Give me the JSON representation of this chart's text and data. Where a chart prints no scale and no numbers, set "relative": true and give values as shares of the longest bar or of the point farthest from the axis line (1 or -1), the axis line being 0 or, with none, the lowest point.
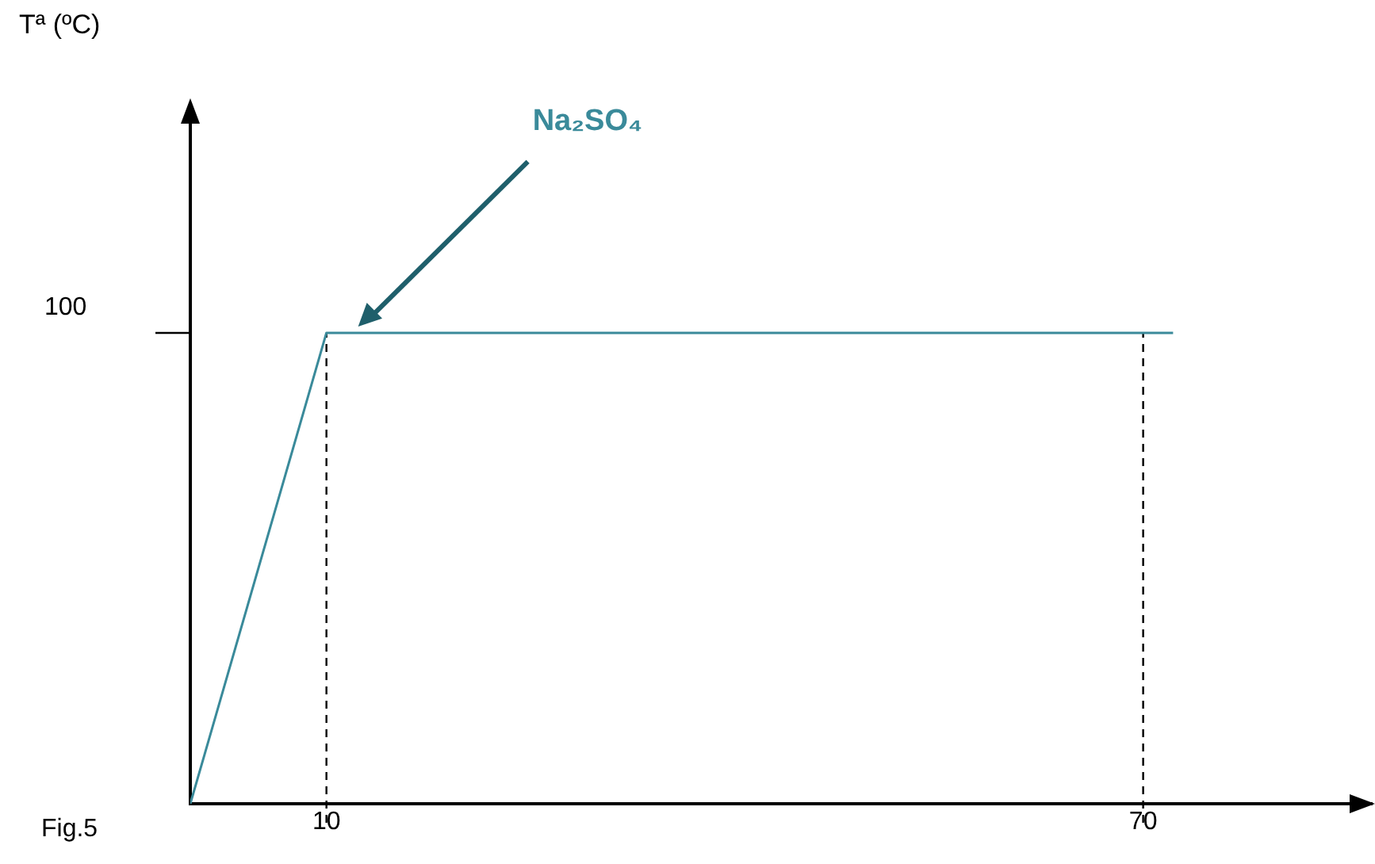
{
  "chart_data": {
    "type": "line",
    "x": [
      0,
      10,
      72.2
    ],
    "series": [
      {
        "color": "#3a8a9a",
        "values": [
          0,
          1,
          1
        ]
      }
    ],
    "xlim": [
      0,
      86.8
    ],
    "xticks": [
      10,
      70
    ],
    "relative": true,
    "grid": false,
    "legend": false,
    "marker": "none",
    "line_style": "solid",
    "ref_lines": [
      {
        "axis": "x",
        "value": 10,
        "color": "#000000",
        "line_style": "dashed"
      },
      {
        "axis": "x",
        "value": 70,
        "color": "#000000",
        "line_style": "dashed"
      }
    ],
    "annotations": [
      "Tª (ºC)",
      "Na₂SO₄",
      "100",
      "Fig.5"
    ]
  }
}
